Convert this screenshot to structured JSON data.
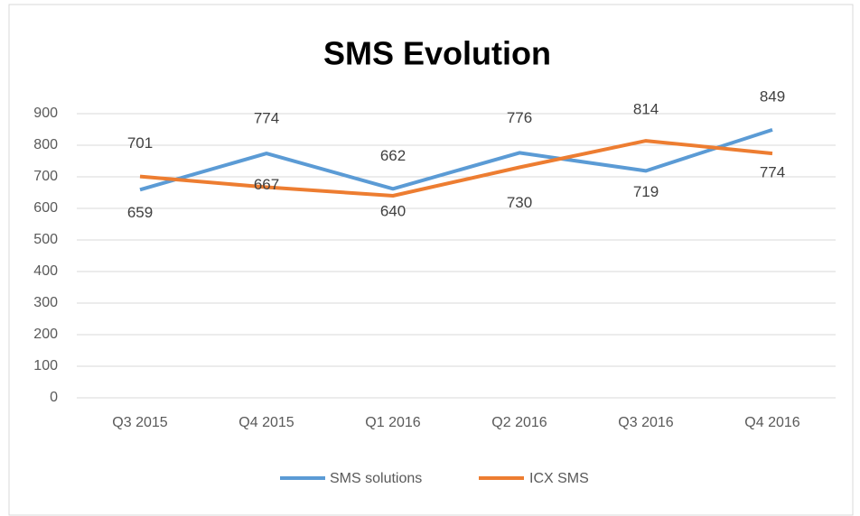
{
  "chart_data": {
    "type": "line",
    "title": "SMS Evolution",
    "categories": [
      "Q3 2015",
      "Q4 2015",
      "Q1 2016",
      "Q2 2016",
      "Q3 2016",
      "Q4 2016"
    ],
    "series": [
      {
        "name": "SMS solutions",
        "color": "#5b9bd5",
        "values": [
          659,
          774,
          662,
          776,
          719,
          849
        ]
      },
      {
        "name": "ICX SMS",
        "color": "#ed7d31",
        "values": [
          701,
          667,
          640,
          730,
          814,
          774
        ]
      }
    ],
    "ylim": [
      0,
      900
    ],
    "yticks": [
      0,
      100,
      200,
      300,
      400,
      500,
      600,
      700,
      800,
      900
    ],
    "grid": true,
    "legend": "bottom"
  }
}
